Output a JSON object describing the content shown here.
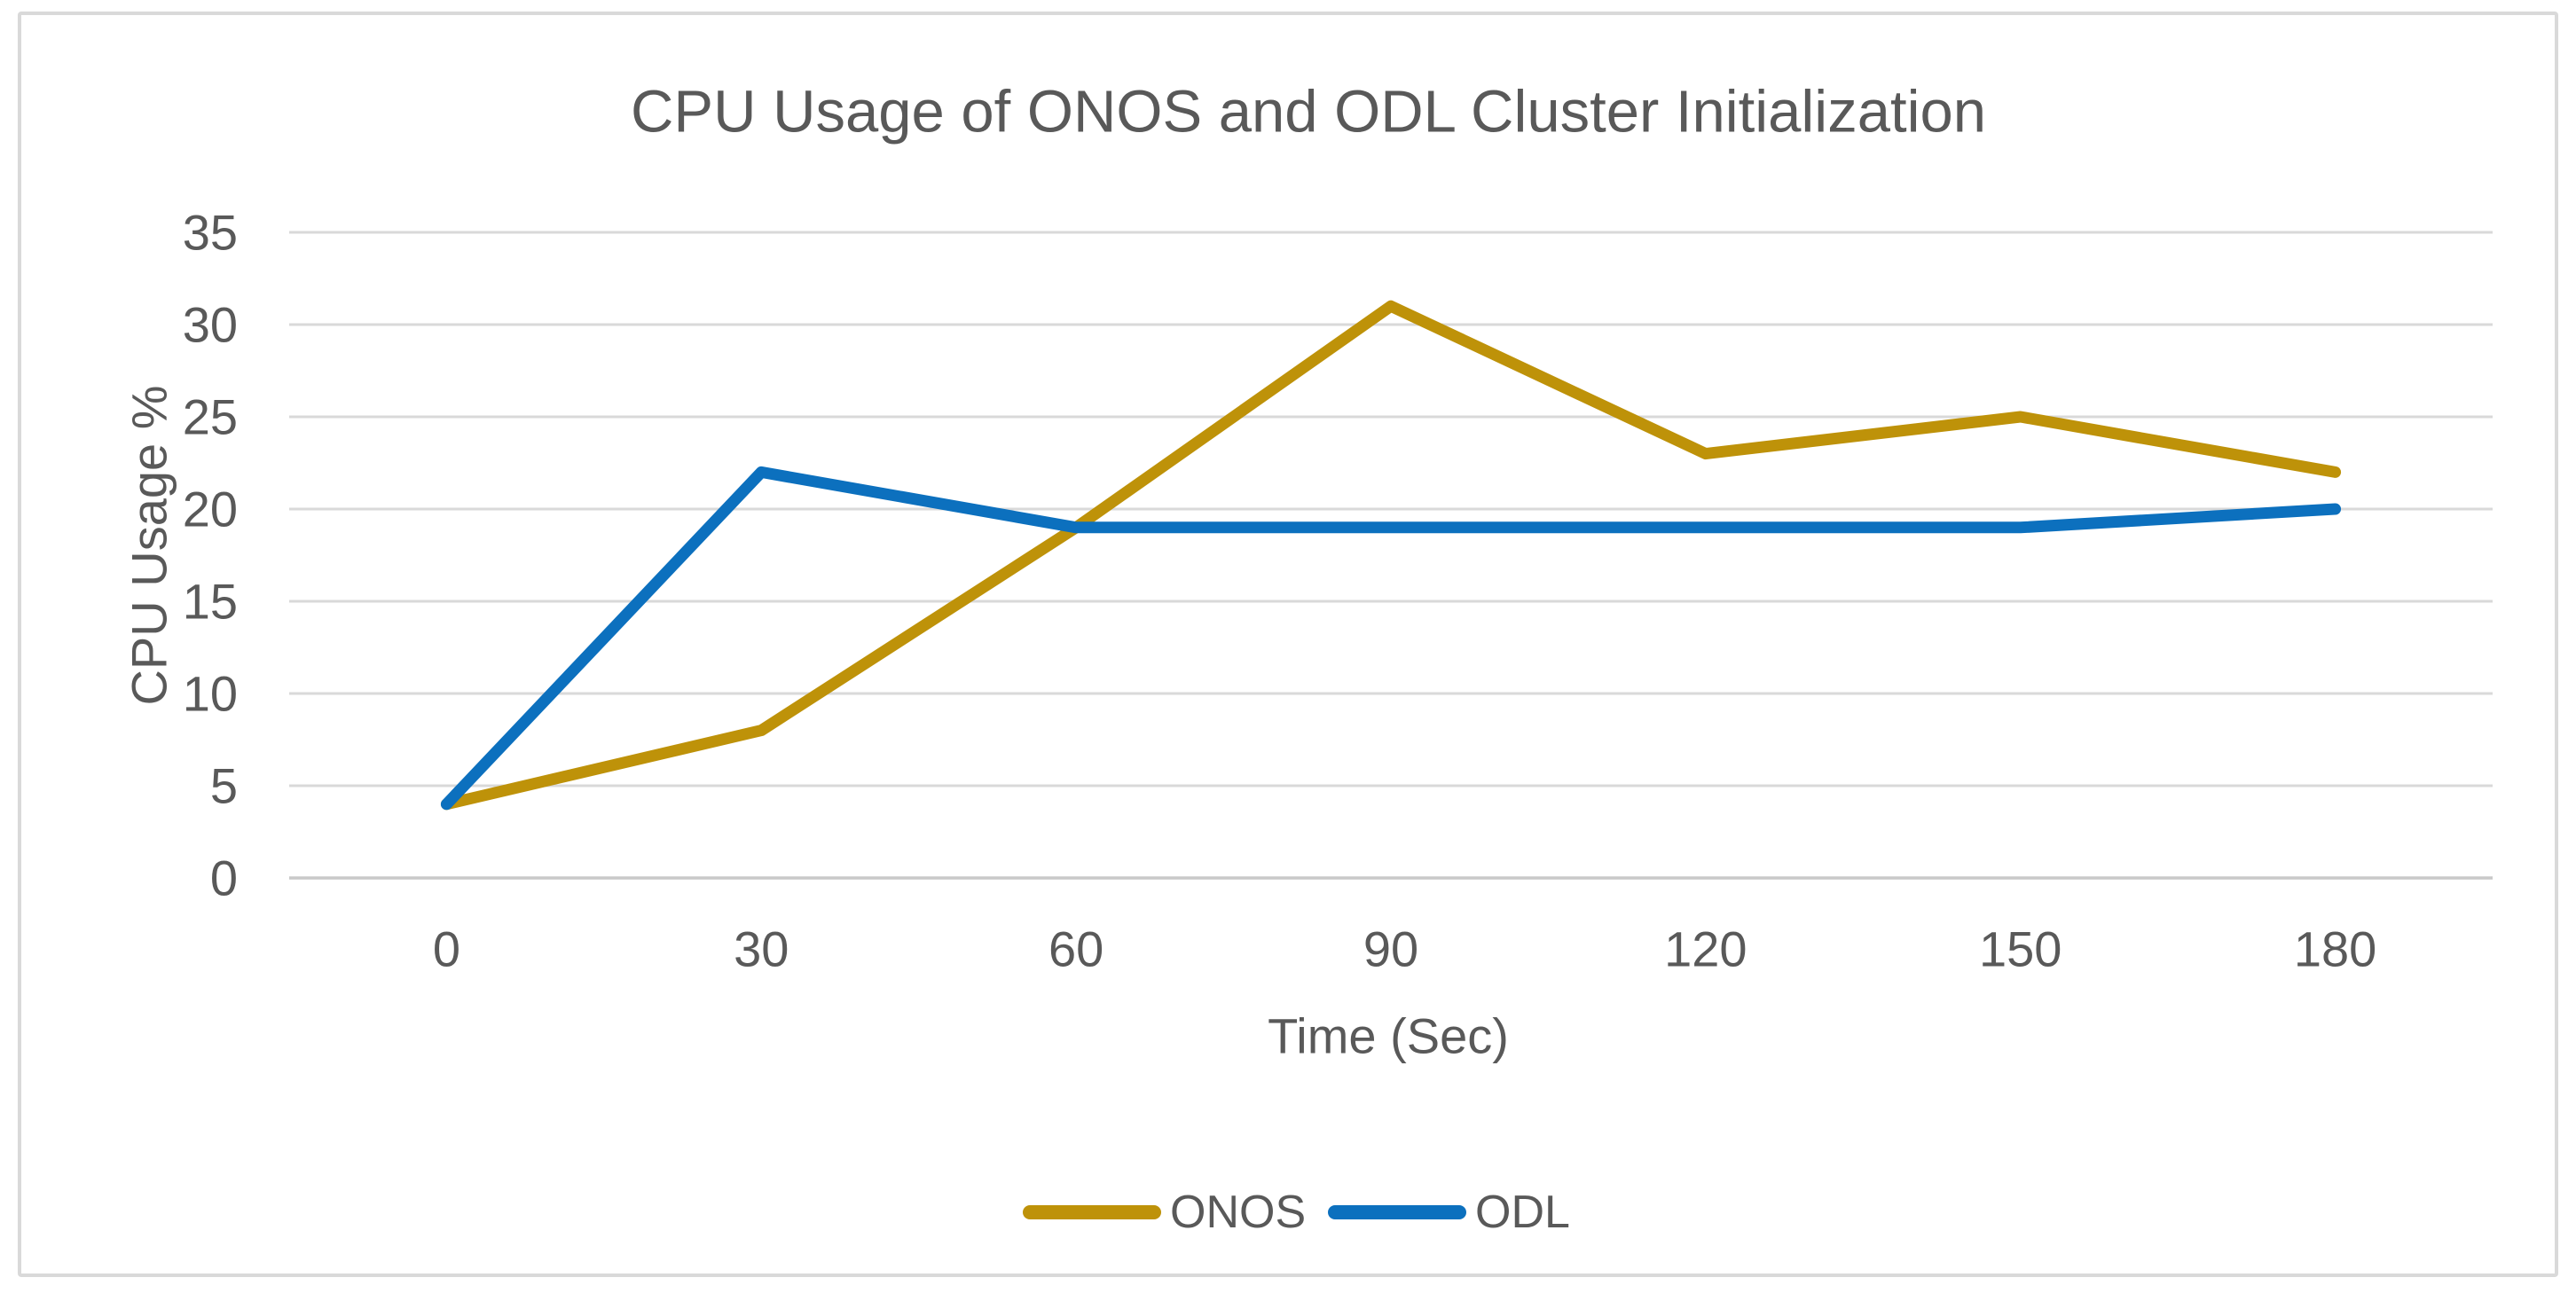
{
  "figure": {
    "title": "CPU Usage of ONOS and ODL Cluster Initialization"
  },
  "chart_data": {
    "type": "line",
    "title": "CPU Usage of ONOS and ODL Cluster Initialization",
    "xlabel": "Time (Sec)",
    "ylabel": "CPU Usage %",
    "categories": [
      0,
      30,
      60,
      90,
      120,
      150,
      180
    ],
    "series": [
      {
        "name": "ONOS",
        "color": "#BE9209",
        "values": [
          4,
          8,
          19,
          31,
          23,
          25,
          22
        ]
      },
      {
        "name": "ODL",
        "color": "#0C70BE",
        "values": [
          4,
          22,
          19,
          19,
          19,
          19,
          20
        ]
      }
    ],
    "ylim": [
      0,
      35
    ],
    "yticks": [
      0,
      5,
      10,
      15,
      20,
      25,
      30,
      35
    ],
    "grid": true,
    "legend_position": "bottom-center",
    "legend_labels": [
      "ONOS",
      "ODL"
    ]
  },
  "colors": {
    "text": "#595959",
    "gridline": "#D9D9D9",
    "axis_line": "#C9C9C9",
    "frame_border": "#D9D9D9",
    "background": "#FFFFFF",
    "series_onos": "#BE9209",
    "series_odl": "#0C70BE"
  }
}
